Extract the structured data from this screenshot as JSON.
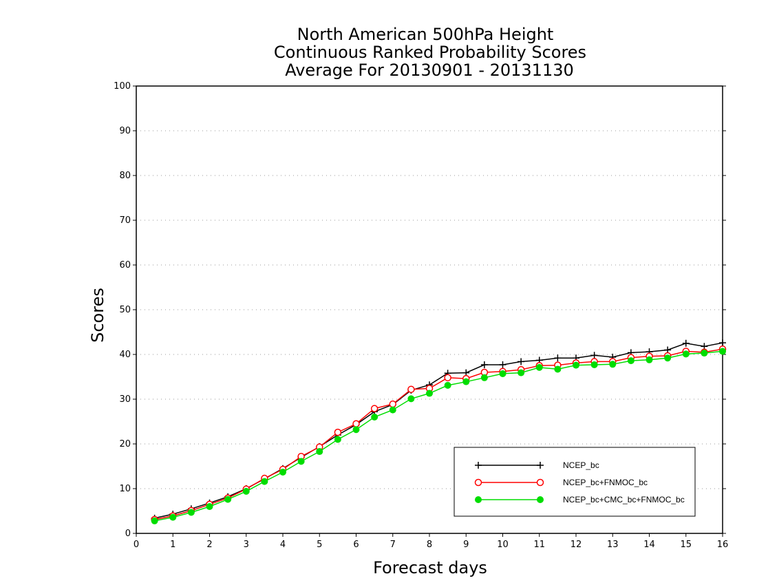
{
  "chart_data": {
    "type": "line",
    "title": [
      "North American 500hPa Height",
      "Continuous Ranked Probability Scores",
      "Average For 20130901 - 20131130"
    ],
    "xlabel": "Forecast days",
    "ylabel": "Scores",
    "xlim": [
      0,
      16
    ],
    "ylim": [
      0,
      100
    ],
    "xticks": [
      0,
      1,
      2,
      3,
      4,
      5,
      6,
      7,
      8,
      9,
      10,
      11,
      12,
      13,
      14,
      15,
      16
    ],
    "yticks": [
      0,
      10,
      20,
      30,
      40,
      50,
      60,
      70,
      80,
      90,
      100
    ],
    "grid": "horizontal dotted",
    "legend_position": "bottom-right",
    "x": [
      0.5,
      1,
      1.5,
      2,
      2.5,
      3,
      3.5,
      4,
      4.5,
      5,
      5.5,
      6,
      6.5,
      7,
      7.5,
      8,
      8.5,
      9,
      9.5,
      10,
      10.5,
      11,
      11.5,
      12,
      12.5,
      13,
      13.5,
      14,
      14.5,
      15,
      15.5,
      16
    ],
    "series": [
      {
        "name": "NCEP_bc",
        "color": "#000000",
        "marker": "plus",
        "values": [
          3.4,
          4.3,
          5.5,
          6.8,
          8.2,
          10.0,
          12.2,
          14.5,
          17.0,
          19.4,
          22.0,
          24.3,
          27.2,
          28.8,
          32.0,
          33.2,
          35.8,
          35.9,
          37.7,
          37.7,
          38.4,
          38.7,
          39.2,
          39.2,
          39.8,
          39.4,
          40.4,
          40.6,
          41.0,
          42.5,
          41.8,
          42.6
        ]
      },
      {
        "name": "NCEP_bc+FNMOC_bc",
        "color": "#ff0000",
        "marker": "open-circle",
        "values": [
          3.1,
          3.9,
          5.1,
          6.5,
          7.9,
          9.9,
          12.3,
          14.3,
          17.2,
          19.3,
          22.6,
          24.5,
          27.9,
          28.9,
          32.2,
          32.4,
          34.8,
          34.6,
          36.0,
          36.2,
          36.6,
          37.5,
          37.6,
          38.1,
          38.4,
          38.4,
          39.3,
          39.6,
          39.7,
          40.7,
          40.5,
          41.2
        ]
      },
      {
        "name": "NCEP_bc+CMC_bc+FNMOC_bc",
        "color": "#00dd00",
        "marker": "filled-circle",
        "values": [
          2.8,
          3.6,
          4.7,
          6.0,
          7.6,
          9.4,
          11.6,
          13.7,
          16.1,
          18.3,
          21.0,
          23.2,
          26.0,
          27.6,
          30.1,
          31.3,
          33.1,
          33.9,
          34.8,
          35.7,
          35.9,
          37.1,
          36.7,
          37.6,
          37.7,
          37.8,
          38.6,
          38.8,
          39.2,
          40.1,
          40.3,
          40.7
        ]
      }
    ]
  }
}
